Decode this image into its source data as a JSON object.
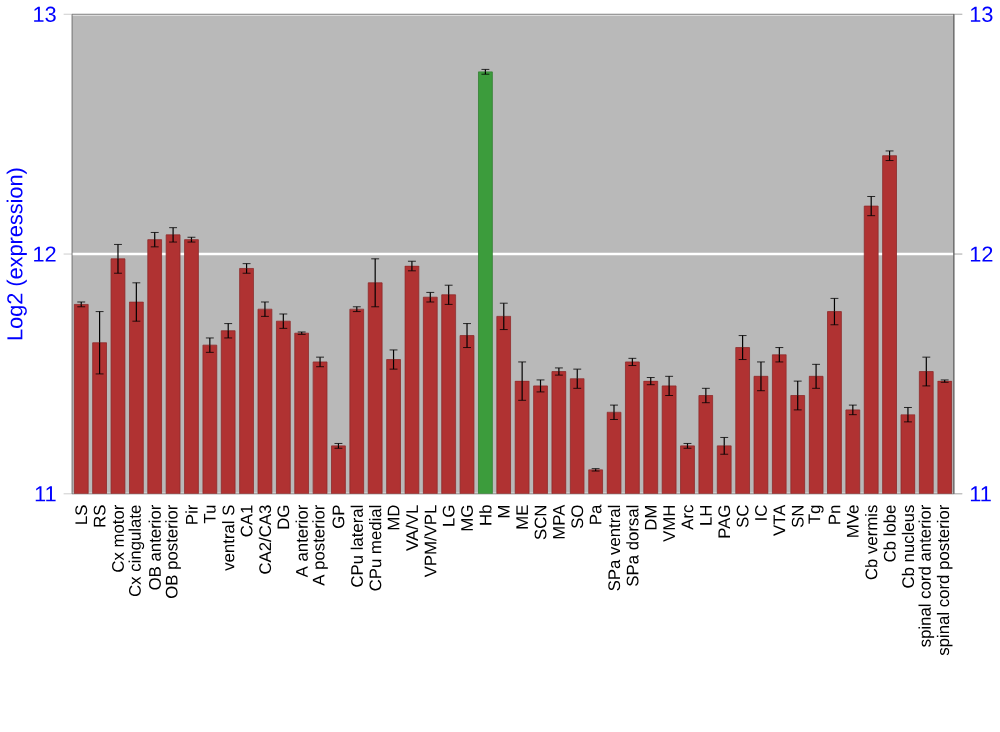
{
  "chart_data": {
    "type": "bar",
    "ylabel": "Log2 (expression)",
    "categories": [
      "LS",
      "RS",
      "Cx motor",
      "Cx cingulate",
      "OB anterior",
      "OB posterior",
      "Pir",
      "Tu",
      "ventral S",
      "CA1",
      "CA2/CA3",
      "DG",
      "A anterior",
      "A posterior",
      "GP",
      "CPu lateral",
      "CPu medial",
      "MD",
      "VA/VL",
      "VPM/VPL",
      "LG",
      "MG",
      "Hb",
      "M",
      "ME",
      "SCN",
      "MPA",
      "SO",
      "Pa",
      "SPa ventral",
      "SPa dorsal",
      "DM",
      "VMH",
      "Arc",
      "LH",
      "PAG",
      "SC",
      "IC",
      "VTA",
      "SN",
      "Tg",
      "Pn",
      "MVe",
      "Cb vermis",
      "Cb lobe",
      "Cb nucleus",
      "spinal cord anterior",
      "spinal cord posterior"
    ],
    "values": [
      11.79,
      11.63,
      11.98,
      11.8,
      12.06,
      12.08,
      12.06,
      11.62,
      11.68,
      11.94,
      11.77,
      11.72,
      11.67,
      11.55,
      11.2,
      11.77,
      11.88,
      11.56,
      11.95,
      11.82,
      11.83,
      11.66,
      12.76,
      11.74,
      11.47,
      11.45,
      11.51,
      11.48,
      11.1,
      11.34,
      11.55,
      11.47,
      11.45,
      11.2,
      11.41,
      11.2,
      11.61,
      11.49,
      11.58,
      11.41,
      11.49,
      11.76,
      11.35,
      12.2,
      12.41,
      11.33,
      11.51,
      11.47
    ],
    "errors": [
      0.01,
      0.13,
      0.06,
      0.08,
      0.03,
      0.03,
      0.01,
      0.03,
      0.03,
      0.02,
      0.03,
      0.03,
      0.005,
      0.02,
      0.01,
      0.01,
      0.1,
      0.04,
      0.02,
      0.02,
      0.04,
      0.05,
      0.01,
      0.055,
      0.08,
      0.025,
      0.015,
      0.04,
      0.005,
      0.03,
      0.015,
      0.015,
      0.04,
      0.01,
      0.03,
      0.035,
      0.05,
      0.06,
      0.03,
      0.06,
      0.05,
      0.055,
      0.02,
      0.04,
      0.02,
      0.03,
      0.06,
      0.005
    ],
    "colors": [
      "#b03232",
      "#b03232",
      "#b03232",
      "#b03232",
      "#b03232",
      "#b03232",
      "#b03232",
      "#b03232",
      "#b03232",
      "#b03232",
      "#b03232",
      "#b03232",
      "#b03232",
      "#b03232",
      "#b03232",
      "#b03232",
      "#b03232",
      "#b03232",
      "#b03232",
      "#b03232",
      "#b03232",
      "#b03232",
      "#3c9c3c",
      "#b03232",
      "#b03232",
      "#b03232",
      "#b03232",
      "#b03232",
      "#b03232",
      "#b03232",
      "#b03232",
      "#b03232",
      "#b03232",
      "#b03232",
      "#b03232",
      "#b03232",
      "#b03232",
      "#b03232",
      "#b03232",
      "#b03232",
      "#b03232",
      "#b03232",
      "#b03232",
      "#b03232",
      "#b03232",
      "#b03232",
      "#b03232",
      "#b03232"
    ],
    "ylim": [
      11,
      13
    ],
    "yticks": [
      11,
      12,
      13
    ],
    "y2lim": [
      11,
      13
    ],
    "y2ticks": [
      11,
      12,
      13
    ],
    "grid": "y"
  }
}
